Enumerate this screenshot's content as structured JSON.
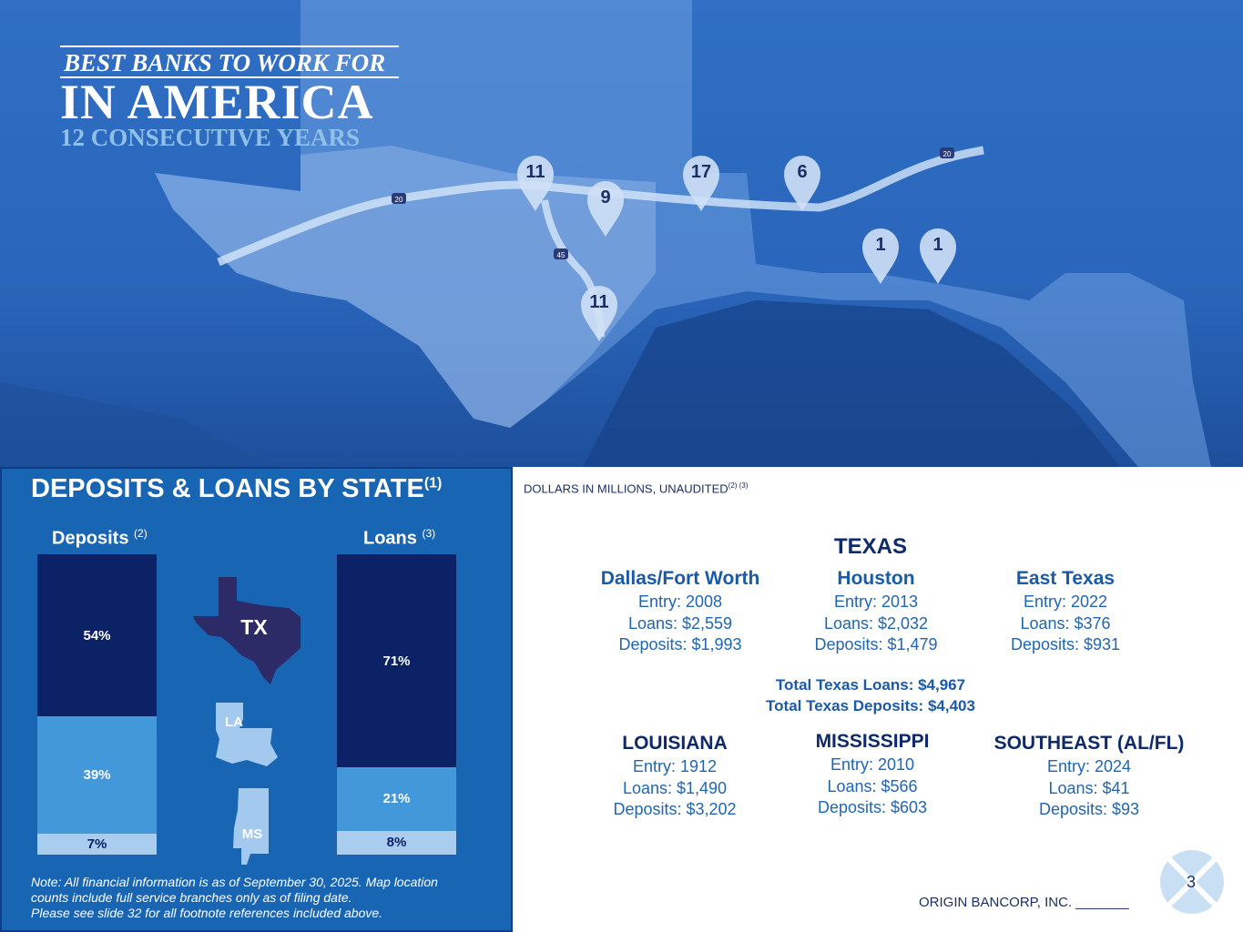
{
  "map": {
    "award": {
      "line1": "BEST BANKS TO WORK FOR",
      "line2": "IN AMERICA",
      "line3": "12 CONSECUTIVE YEARS"
    },
    "highways": [
      "20",
      "45",
      "20"
    ],
    "pins": [
      {
        "label": "11",
        "market": "Dallas/Fort Worth"
      },
      {
        "label": "9"
      },
      {
        "label": "17"
      },
      {
        "label": "6"
      },
      {
        "label": "1"
      },
      {
        "label": "1"
      },
      {
        "label": "11",
        "market": "Houston"
      }
    ]
  },
  "left": {
    "title": "DEPOSITS & LOANS BY STATE",
    "title_sup": "(1)",
    "states": [
      "TX",
      "LA",
      "MS"
    ],
    "note": [
      "Note: All financial information is as of September 30, 2025. Map location",
      "counts include full service branches only as of filing date.",
      "Please see slide 32 for all footnote references included above."
    ]
  },
  "chart_data": {
    "type": "bar",
    "stacked": true,
    "categories": [
      "Deposits",
      "Loans"
    ],
    "category_sups": [
      "(2)",
      "(3)"
    ],
    "series": [
      {
        "name": "TX",
        "values": [
          54,
          71
        ],
        "color": "#0b2266"
      },
      {
        "name": "LA",
        "values": [
          39,
          21
        ],
        "color": "#4298d8"
      },
      {
        "name": "MS",
        "values": [
          7,
          8
        ],
        "color": "#a9cdee"
      }
    ],
    "labels": [
      [
        "54%",
        "39%",
        "7%"
      ],
      [
        "71%",
        "21%",
        "8%"
      ]
    ],
    "ylim": [
      0,
      100
    ]
  },
  "right": {
    "units": "DOLLARS IN MILLIONS, UNAUDITED",
    "units_sup": "(2) (3)",
    "texas": "TEXAS",
    "markets": [
      {
        "name": "Dallas/Fort Worth",
        "entry": "Entry: 2008",
        "loans": "Loans: $2,559",
        "deposits": "Deposits: $1,993"
      },
      {
        "name": "Houston",
        "entry": "Entry: 2013",
        "loans": "Loans: $2,032",
        "deposits": "Deposits: $1,479"
      },
      {
        "name": "East Texas",
        "entry": "Entry: 2022",
        "loans": "Loans: $376",
        "deposits": "Deposits: $931"
      }
    ],
    "total_loans": "Total Texas Loans: $4,967",
    "total_deposits": "Total Texas Deposits: $4,403",
    "regions": [
      {
        "name": "LOUISIANA",
        "entry": "Entry: 1912",
        "loans": "Loans: $1,490",
        "deposits": "Deposits: $3,202"
      },
      {
        "name": "MISSISSIPPI",
        "entry": "Entry: 2010",
        "loans": "Loans: $566",
        "deposits": "Deposits: $603"
      },
      {
        "name": "SOUTHEAST (AL/FL)",
        "entry": "Entry: 2024",
        "loans": "Loans: $41",
        "deposits": "Deposits: $93"
      }
    ],
    "footer": "ORIGIN BANCORP, INC. _______",
    "page": "3"
  }
}
